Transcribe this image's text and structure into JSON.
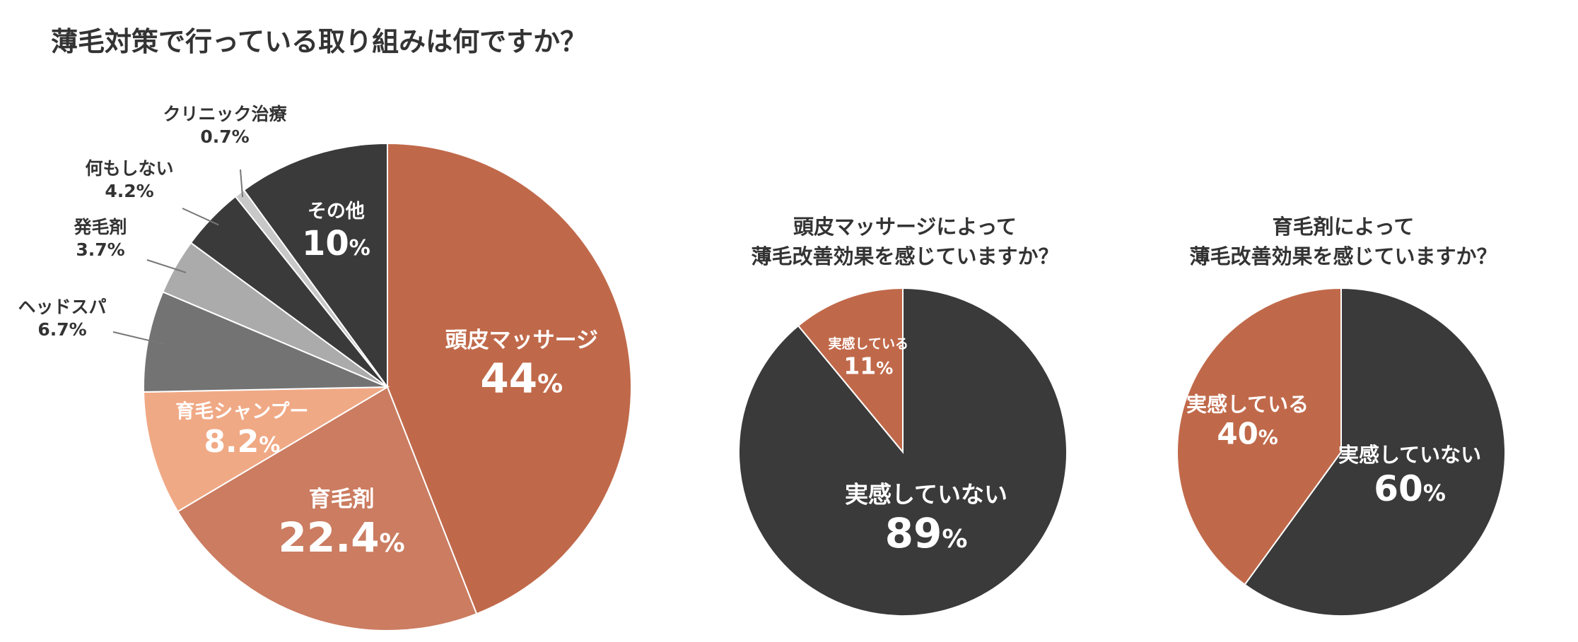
{
  "title": "薄毛対策で行っている取り組みは何ですか？",
  "chart_data": [
    {
      "type": "pie",
      "title": "薄毛対策で行っている取り組みは何ですか？",
      "slices": [
        {
          "label": "頭皮マッサージ",
          "value": 44,
          "value_text": "44",
          "unit": "%",
          "color": "#c0694a"
        },
        {
          "label": "育毛剤",
          "value": 22.4,
          "value_text": "22.4",
          "unit": "%",
          "color": "#cb7c61"
        },
        {
          "label": "育毛シャンプー",
          "value": 8.2,
          "value_text": "8.2",
          "unit": "%",
          "color": "#f0a985"
        },
        {
          "label": "ヘッドスパ",
          "value": 6.7,
          "value_text": "6.7%",
          "unit": "",
          "color": "#737373"
        },
        {
          "label": "発毛剤",
          "value": 3.7,
          "value_text": "3.7%",
          "unit": "",
          "color": "#ababab"
        },
        {
          "label": "何もしない",
          "value": 4.2,
          "value_text": "4.2%",
          "unit": "",
          "color": "#3a3a3a"
        },
        {
          "label": "クリニック治療",
          "value": 0.7,
          "value_text": "0.7%",
          "unit": "",
          "color": "#c8c8c8"
        },
        {
          "label": "その他",
          "value": 10,
          "value_text": "10",
          "unit": "%",
          "color": "#3a3a3a"
        }
      ]
    },
    {
      "type": "pie",
      "title_lines": [
        "頭皮マッサージによって",
        "薄毛改善効果を感じていますか？"
      ],
      "slices": [
        {
          "label": "実感していない",
          "value": 89,
          "value_text": "89",
          "unit": "%",
          "color": "#3a3a3a"
        },
        {
          "label": "実感している",
          "value": 11,
          "value_text": "11",
          "unit": "%",
          "color": "#c0694a"
        }
      ]
    },
    {
      "type": "pie",
      "title_lines": [
        "育毛剤によって",
        "薄毛改善効果を感じていますか？"
      ],
      "slices": [
        {
          "label": "実感していない",
          "value": 60,
          "value_text": "60",
          "unit": "%",
          "color": "#3a3a3a"
        },
        {
          "label": "実感している",
          "value": 40,
          "value_text": "40",
          "unit": "%",
          "color": "#c0694a"
        }
      ]
    }
  ]
}
